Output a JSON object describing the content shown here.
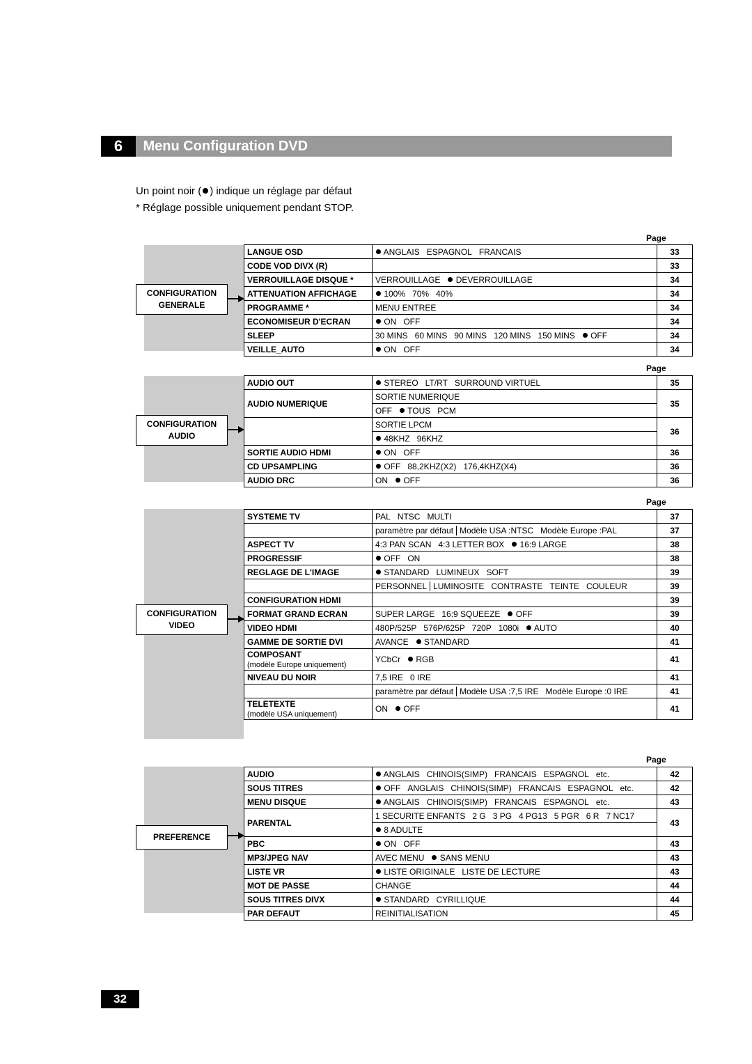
{
  "chapter": {
    "num": "6",
    "title": "Menu Configuration DVD"
  },
  "intro_line1_pre": "Un point noir (",
  "intro_line1_post": ") indique un réglage par défaut",
  "intro_line2": "* Réglage possible uniquement pendant STOP.",
  "page_header": "Page",
  "pagefoot": "32",
  "cats": {
    "generale": "CONFIGURATION GENERALE",
    "audio": "CONFIGURATION AUDIO",
    "video": "CONFIGURATION VIDEO",
    "pref": "PREFERENCE"
  },
  "sec1": [
    {
      "l": "LANGUE OSD",
      "o": [
        "● ANGLAIS",
        "ESPAGNOL",
        "FRANCAIS"
      ],
      "p": "33"
    },
    {
      "l": "CODE VOD DIVX (R)",
      "o": [],
      "p": "33"
    },
    {
      "l": "VERROUILLAGE DISQUE *",
      "o": [
        "VERROUILLAGE",
        "● DEVERROUILLAGE"
      ],
      "p": "34"
    },
    {
      "l": "ATTENUATION AFFICHAGE",
      "o": [
        "● 100%",
        "70%",
        "40%"
      ],
      "p": "34"
    },
    {
      "l": "PROGRAMME *",
      "o": [
        "MENU ENTREE"
      ],
      "p": "34"
    },
    {
      "l": "ECONOMISEUR D'ECRAN",
      "o": [
        "● ON",
        "OFF"
      ],
      "p": "34"
    },
    {
      "l": "SLEEP",
      "o": [
        "30 MINS",
        "60 MINS",
        "90 MINS",
        "120 MINS",
        "150 MINS",
        "● OFF"
      ],
      "p": "34"
    },
    {
      "l": "VEILLE_AUTO",
      "o": [
        "● ON",
        "OFF"
      ],
      "p": "34"
    }
  ],
  "sec2": [
    {
      "l": "AUDIO OUT",
      "o": [
        "● STEREO",
        "LT/RT",
        "SURROUND VIRTUEL"
      ],
      "p": "35"
    },
    {
      "l": "AUDIO NUMERIQUE",
      "o": [
        "SORTIE NUMERIQUE"
      ],
      "p": "35",
      "sp": 2,
      "o2": [
        "OFF",
        "● TOUS",
        "PCM"
      ]
    },
    {
      "l": "",
      "o": [
        "SORTIE LPCM"
      ],
      "p": "36",
      "sp": 2,
      "o2": [
        "● 48KHZ",
        "96KHZ"
      ]
    },
    {
      "l": "SORTIE AUDIO HDMI",
      "o": [
        "● ON",
        "OFF"
      ],
      "p": "36"
    },
    {
      "l": "CD UPSAMPLING",
      "o": [
        "● OFF",
        "88,2KHZ(X2)",
        "176,4KHZ(X4)"
      ],
      "p": "36"
    },
    {
      "l": "AUDIO DRC",
      "o": [
        "ON",
        "● OFF"
      ],
      "p": "36"
    }
  ],
  "sec3": [
    {
      "l": "SYSTEME TV",
      "o": [
        "PAL",
        "NTSC",
        "MULTI"
      ],
      "p": "37"
    },
    {
      "l": "",
      "o": [
        "paramètre par défaut",
        "| Modèle USA :NTSC",
        "Modèle Europe :PAL"
      ],
      "p": "37",
      "plain": true
    },
    {
      "l": "ASPECT TV",
      "o": [
        "4:3 PAN SCAN",
        "4:3 LETTER BOX",
        "● 16:9 LARGE"
      ],
      "p": "38"
    },
    {
      "l": "PROGRESSIF",
      "o": [
        "● OFF",
        "ON"
      ],
      "p": "38"
    },
    {
      "l": "REGLAGE DE L'IMAGE",
      "o": [
        "● STANDARD",
        "LUMINEUX",
        "SOFT"
      ],
      "p": "39"
    },
    {
      "l": "",
      "o": [
        "PERSONNEL",
        "| LUMINOSITE",
        "CONTRASTE",
        "TEINTE",
        "COULEUR"
      ],
      "p": "39",
      "plain": true
    },
    {
      "l": "CONFIGURATION HDMI",
      "o": [],
      "p": "39"
    },
    {
      "l": "FORMAT GRAND ECRAN",
      "o": [
        "SUPER LARGE",
        "16:9 SQUEEZE",
        "● OFF"
      ],
      "p": "39",
      "sp": 2
    },
    {
      "l": "VIDEO HDMI",
      "o": [
        "480P/525P",
        "576P/625P",
        "720P",
        "1080i",
        "● AUTO"
      ],
      "p": "40"
    },
    {
      "l": "GAMME DE SORTIE DVI",
      "o": [
        "AVANCE",
        "● STANDARD"
      ],
      "p": "41"
    },
    {
      "l": "COMPOSANT",
      "sub": "(modèle Europe uniquement)",
      "o": [
        "YCbCr",
        "● RGB"
      ],
      "p": "41",
      "sp": 2
    },
    {
      "l": "NIVEAU DU NOIR",
      "o": [
        "7,5 IRE",
        "0 IRE"
      ],
      "p": "41"
    },
    {
      "l": "",
      "o": [
        "paramètre par défaut",
        "| Modèle USA :7,5 IRE",
        "Modèle Europe :0 IRE"
      ],
      "p": "41",
      "plain": true
    },
    {
      "l": "TELETEXTE",
      "sub": "(modèle USA uniquement)",
      "o": [
        "ON",
        "● OFF"
      ],
      "p": "41",
      "sp": 2
    }
  ],
  "sec4": [
    {
      "l": "AUDIO",
      "o": [
        "● ANGLAIS",
        "CHINOIS(SIMP)",
        "FRANCAIS",
        "ESPAGNOL",
        "etc."
      ],
      "p": "42"
    },
    {
      "l": "SOUS TITRES",
      "o": [
        "● OFF",
        "ANGLAIS",
        "CHINOIS(SIMP)",
        "FRANCAIS",
        "ESPAGNOL",
        "etc."
      ],
      "p": "42"
    },
    {
      "l": "MENU DISQUE",
      "o": [
        "● ANGLAIS",
        "CHINOIS(SIMP)",
        "FRANCAIS",
        "ESPAGNOL",
        "etc."
      ],
      "p": "43"
    },
    {
      "l": "PARENTAL",
      "o": [
        "1 SECURITE ENFANTS",
        "2 G",
        "3 PG",
        "4 PG13",
        "5 PGR",
        "6 R",
        "7 NC17"
      ],
      "p": "43",
      "sp": 2,
      "o2": [
        "● 8 ADULTE"
      ]
    },
    {
      "l": "PBC",
      "o": [
        "● ON",
        "OFF"
      ],
      "p": "43"
    },
    {
      "l": "MP3/JPEG NAV",
      "o": [
        "AVEC MENU",
        "● SANS MENU"
      ],
      "p": "43"
    },
    {
      "l": "LISTE VR",
      "o": [
        "● LISTE ORIGINALE",
        "LISTE DE LECTURE"
      ],
      "p": "43"
    },
    {
      "l": "MOT DE PASSE",
      "o": [
        "CHANGE"
      ],
      "p": "44"
    },
    {
      "l": "SOUS TITRES DIVX",
      "o": [
        "● STANDARD",
        "CYRILLIQUE"
      ],
      "p": "44"
    },
    {
      "l": "PAR DEFAUT",
      "o": [
        "REINITIALISATION"
      ],
      "p": "45"
    }
  ]
}
